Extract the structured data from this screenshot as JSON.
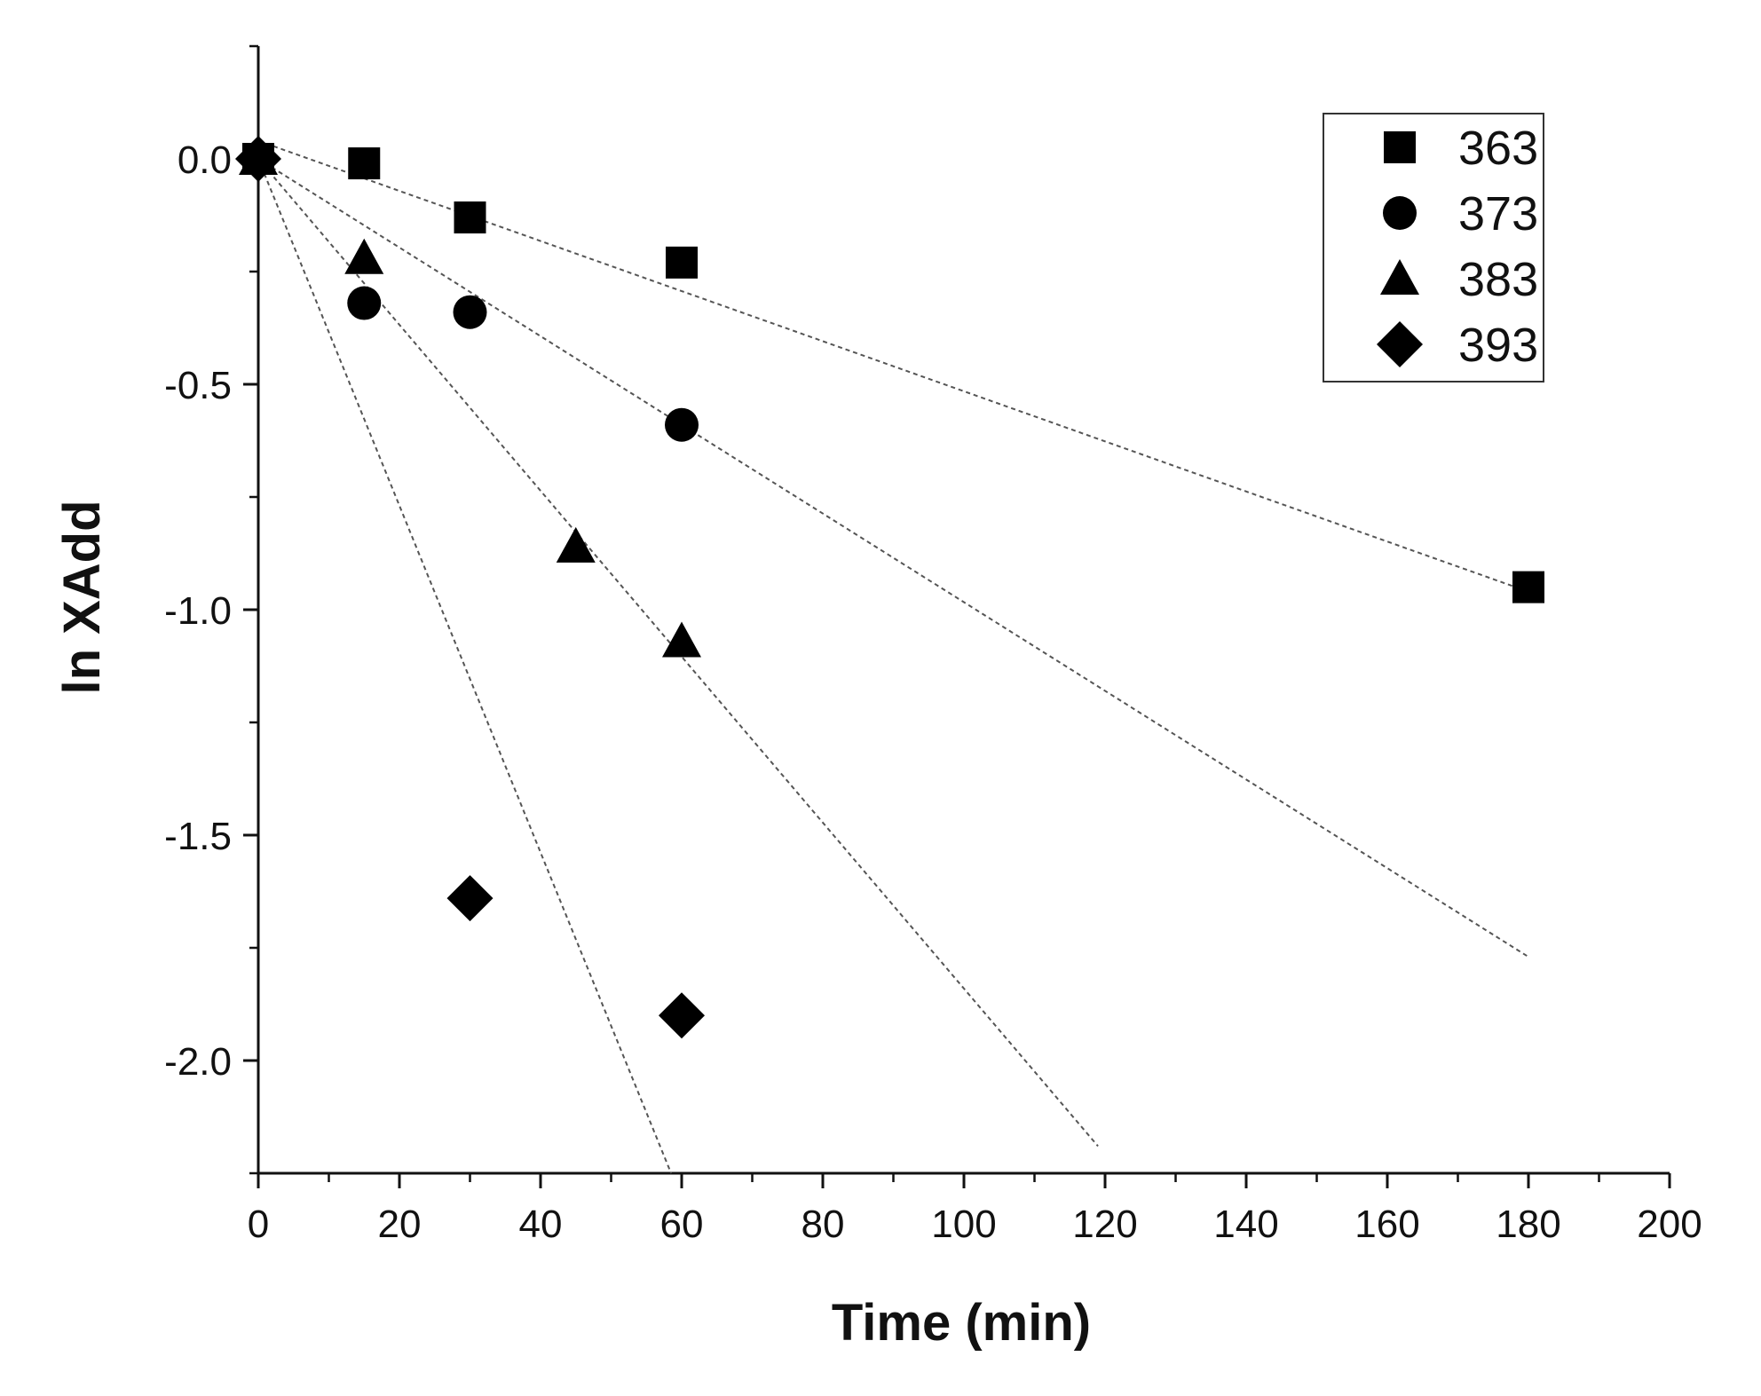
{
  "chart_data": {
    "type": "scatter",
    "title": "",
    "xlabel": "Time (min)",
    "ylabel": "ln XAdd",
    "xlim": [
      0,
      200
    ],
    "ylim": [
      -2.25,
      0.25
    ],
    "x_major_ticks": [
      0,
      20,
      40,
      60,
      80,
      100,
      120,
      140,
      160,
      180,
      200
    ],
    "x_tick_labels": [
      "0",
      "20",
      "40",
      "60",
      "80",
      "100",
      "120",
      "140",
      "160",
      "180",
      "200"
    ],
    "y_major_ticks": [
      0.0,
      -0.5,
      -1.0,
      -1.5,
      -2.0
    ],
    "y_tick_labels": [
      "0.0",
      "-0.5",
      "-1.0",
      "-1.5",
      "-2.0"
    ],
    "grid": false,
    "legend_position": "top-right",
    "series": [
      {
        "name": "363",
        "marker": "square",
        "x": [
          0,
          15,
          30,
          60,
          180
        ],
        "y": [
          0.0,
          -0.01,
          -0.13,
          -0.23,
          -0.95
        ],
        "fit": {
          "x": [
            0,
            180
          ],
          "y": [
            0.04,
            -0.96
          ]
        }
      },
      {
        "name": "373",
        "marker": "circle",
        "x": [
          0,
          15,
          30,
          60
        ],
        "y": [
          0.0,
          -0.32,
          -0.34,
          -0.59
        ],
        "fit": {
          "x": [
            0,
            180
          ],
          "y": [
            0.0,
            -1.77
          ]
        }
      },
      {
        "name": "383",
        "marker": "triangle",
        "x": [
          0,
          15,
          45,
          60
        ],
        "y": [
          0.0,
          -0.22,
          -0.86,
          -1.07
        ],
        "fit": {
          "x": [
            0,
            119
          ],
          "y": [
            0.0,
            -2.19
          ]
        }
      },
      {
        "name": "393",
        "marker": "diamond",
        "x": [
          0,
          30,
          60
        ],
        "y": [
          0.0,
          -1.64,
          -1.9
        ],
        "fit": {
          "x": [
            0,
            58.5
          ],
          "y": [
            0.0,
            -2.25
          ]
        }
      }
    ]
  }
}
